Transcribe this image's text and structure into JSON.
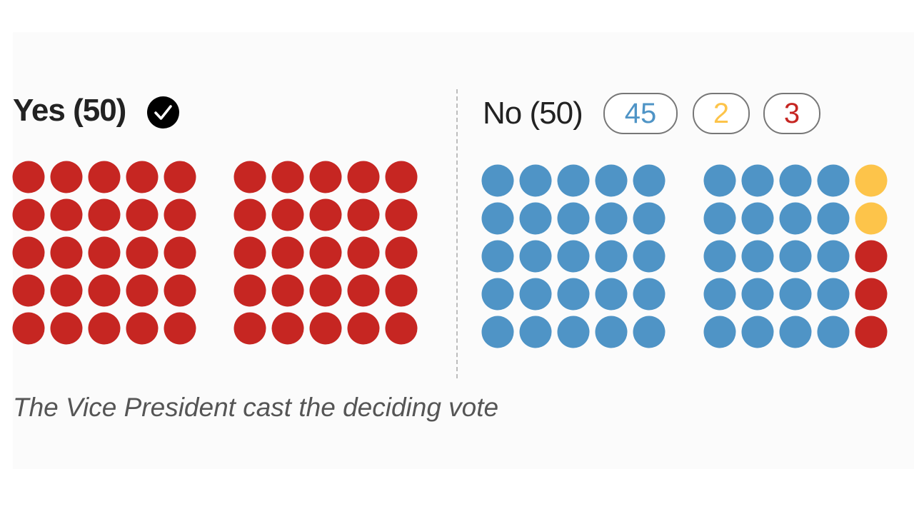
{
  "chart_data": {
    "type": "dot-matrix",
    "groups": [
      {
        "label": "Yes (50)",
        "winner": true,
        "segments": [
          {
            "party": "republican",
            "count": 50,
            "color": "#c62622"
          }
        ]
      },
      {
        "label": "No (50)",
        "winner": false,
        "segments": [
          {
            "party": "democrat",
            "count": 45,
            "color": "#4f94c6"
          },
          {
            "party": "independent",
            "count": 2,
            "color": "#fdc44a"
          },
          {
            "party": "republican",
            "count": 3,
            "color": "#c62622"
          }
        ]
      }
    ],
    "badges": [
      "45",
      "2",
      "3"
    ],
    "caption": "The Vice President cast the deciding vote"
  },
  "icons": {
    "winner": "check-circle-icon"
  }
}
